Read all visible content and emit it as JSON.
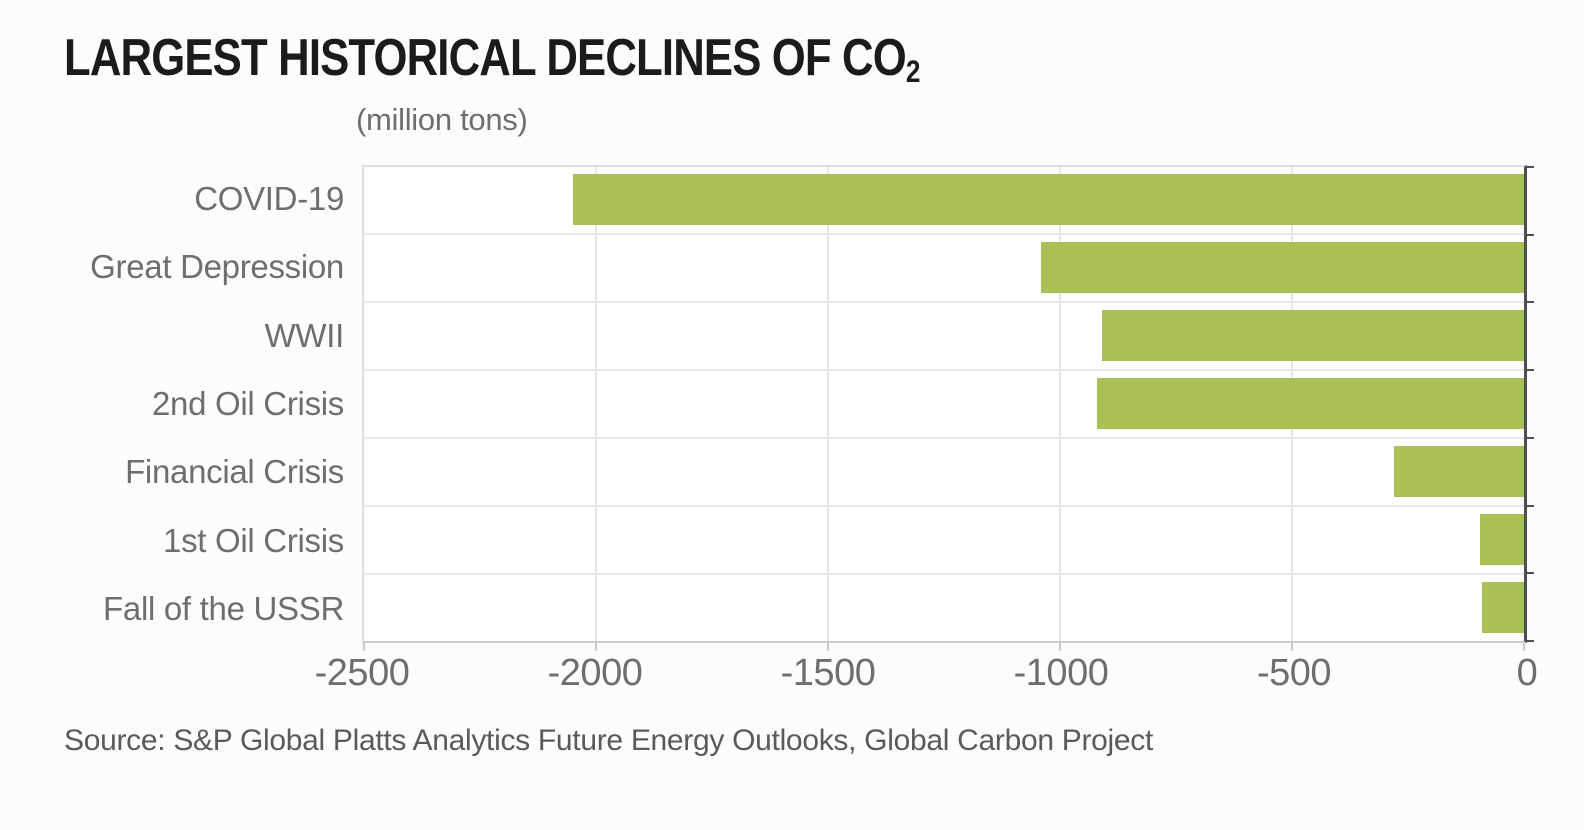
{
  "title": {
    "main": "LARGEST HISTORICAL DECLINES OF CO",
    "subscript": "2"
  },
  "units_label": "(million tons)",
  "source": "Source: S&P Global Platts Analytics Future Energy Outlooks, Global Carbon Project",
  "colors": {
    "bar": "#a9c154",
    "gridline": "#e5e5e5",
    "plot_border": "#dedede",
    "zero_axis": "#4f4f4f",
    "label_text": "#6e6e6e",
    "title_text": "#1b1b1b",
    "source_text": "#5a5a5a",
    "background": "#fcfcfa"
  },
  "chart_data": {
    "type": "bar",
    "orientation": "horizontal",
    "title": "LARGEST HISTORICAL DECLINES OF CO2",
    "xlabel": "(million tons)",
    "categories": [
      "COVID-19",
      "Great Depression",
      "WWII",
      "2nd Oil Crisis",
      "Financial Crisis",
      "1st Oil Crisis",
      "Fall of the USSR"
    ],
    "values": [
      -2050,
      -1040,
      -910,
      -920,
      -280,
      -95,
      -90
    ],
    "xlim": [
      -2500,
      0
    ],
    "x_ticks": [
      -2500,
      -2000,
      -1500,
      -1000,
      -500,
      0
    ],
    "grid": true,
    "legend": false,
    "bar_color": "#a9c154"
  }
}
